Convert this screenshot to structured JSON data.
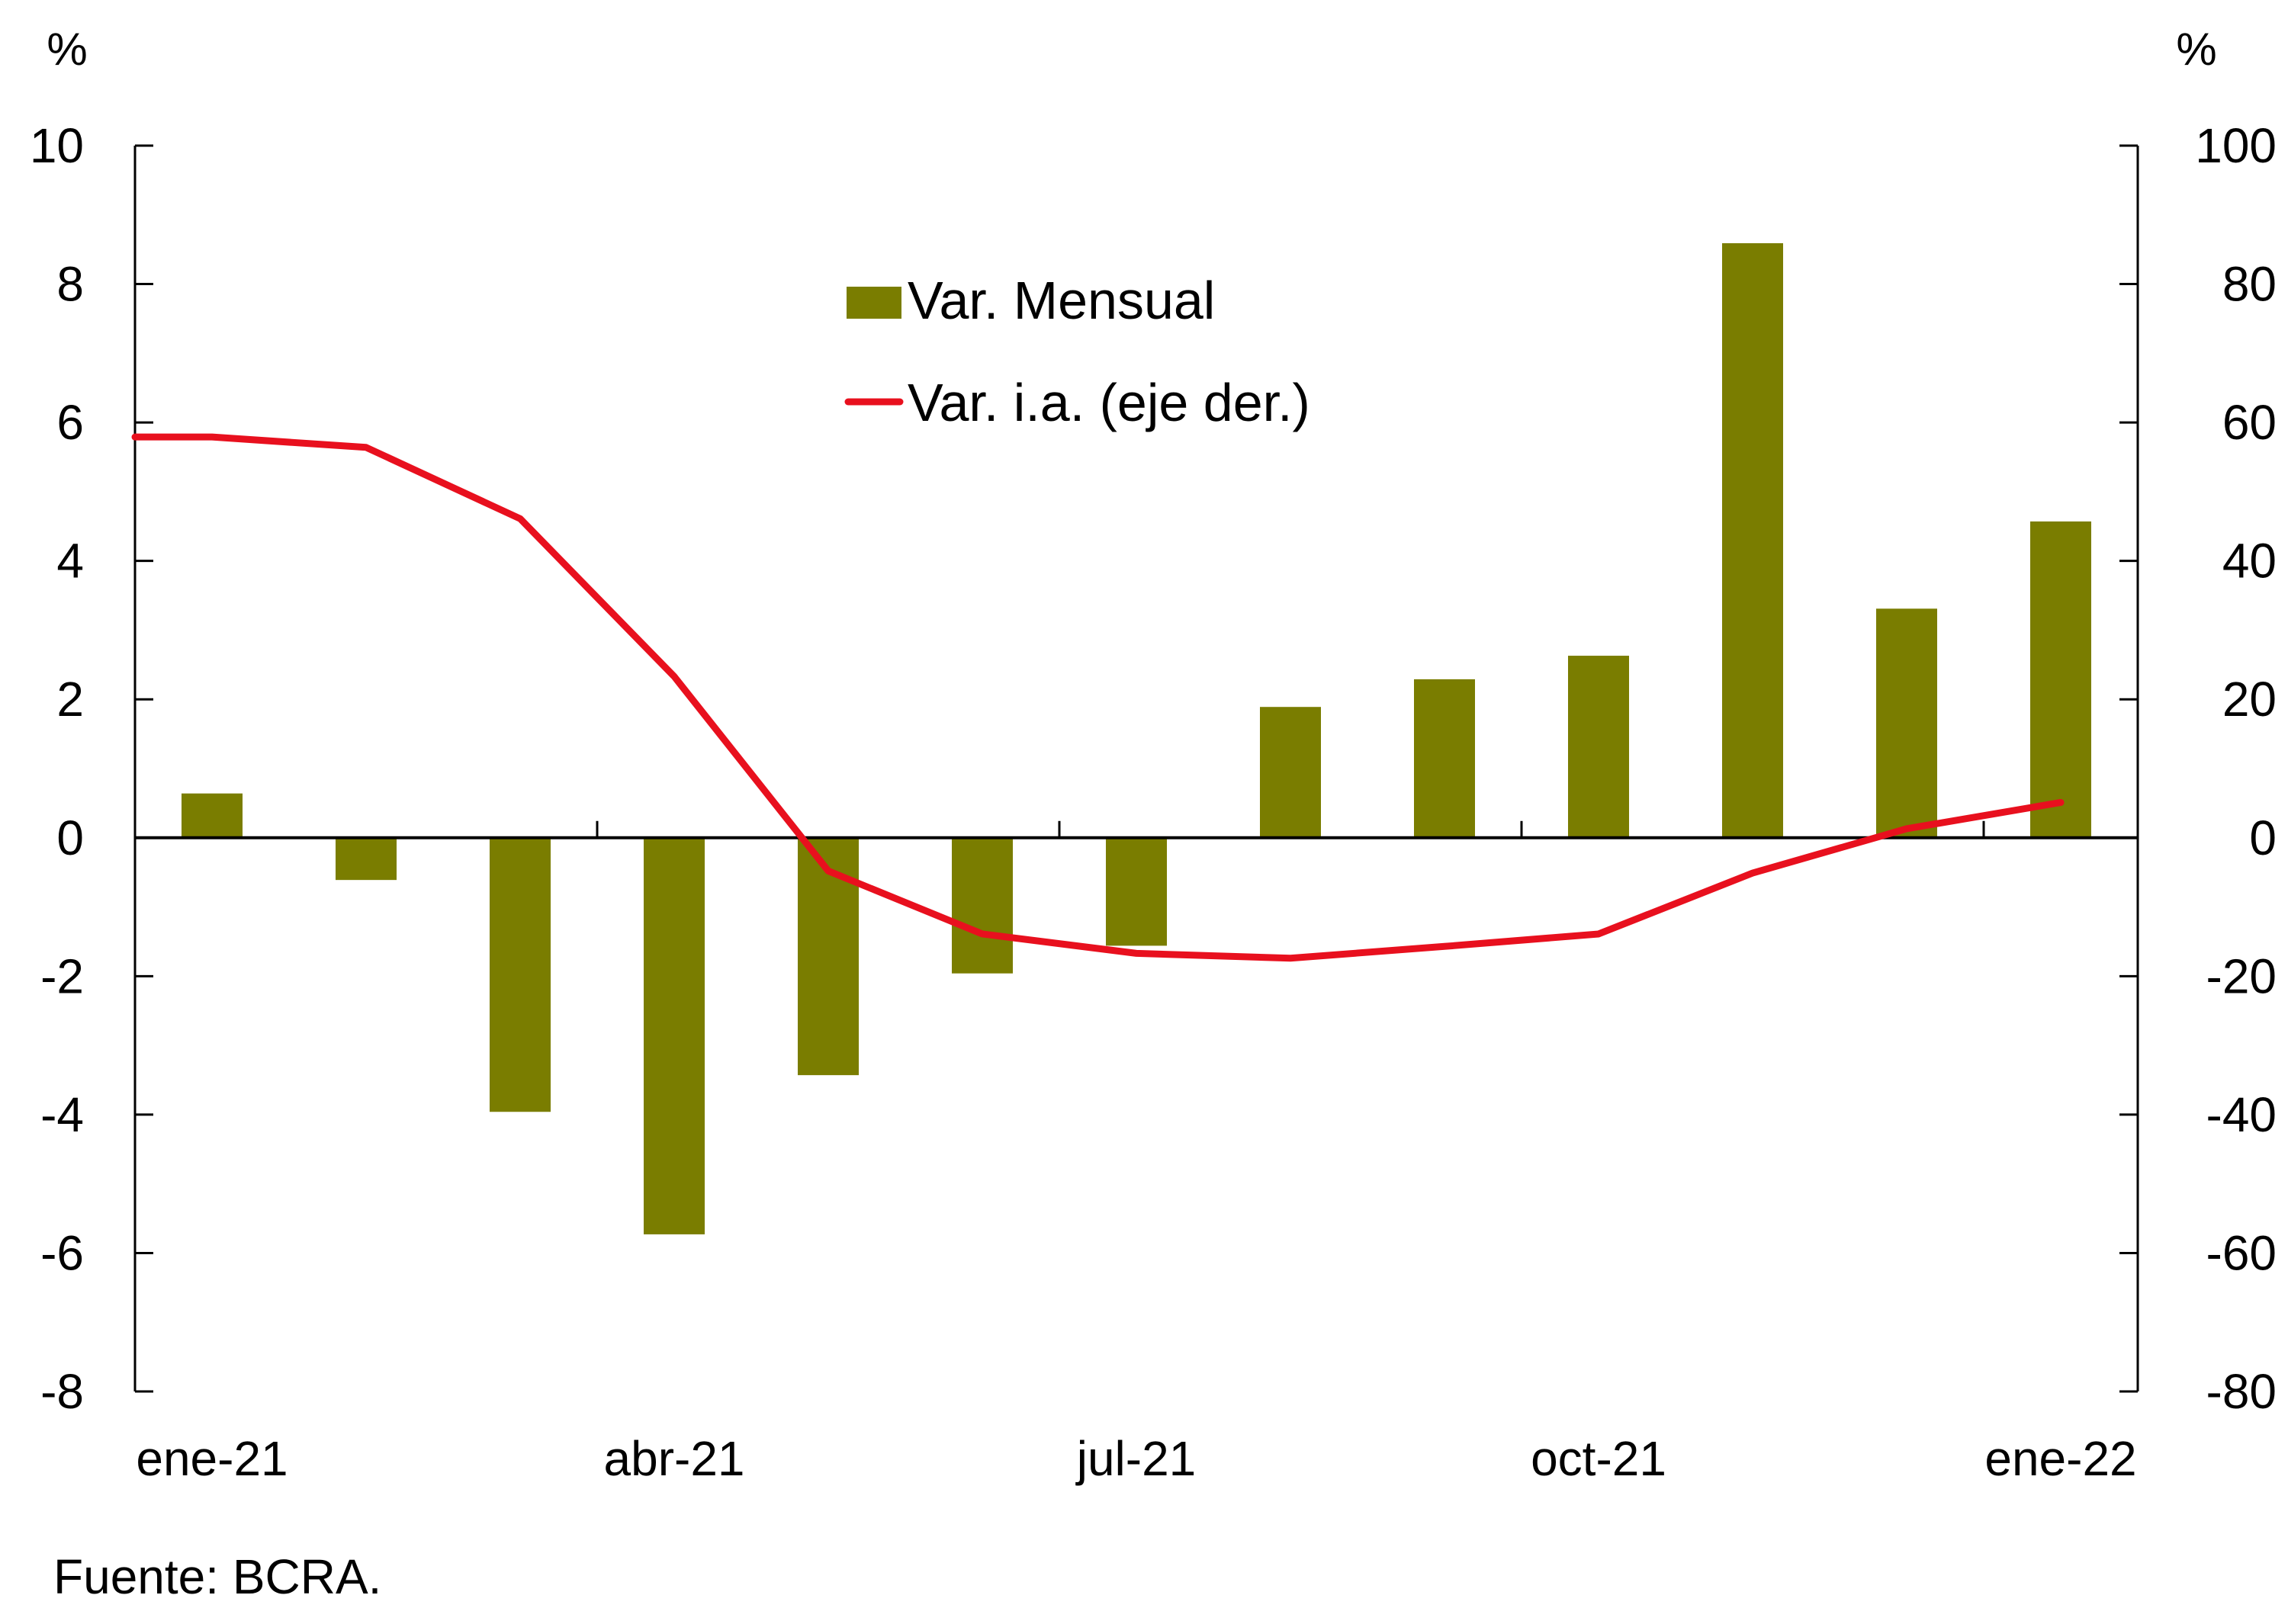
{
  "chart_data": {
    "type": "bar+line",
    "title": "",
    "categories": [
      "ene-21",
      "feb-21",
      "mar-21",
      "abr-21",
      "may-21",
      "jun-21",
      "jul-21",
      "ago-21",
      "sep-21",
      "oct-21",
      "nov-21",
      "dic-21",
      "ene-22"
    ],
    "x_tick_labels": [
      {
        "category": "ene-21",
        "label": "ene-21"
      },
      {
        "category": "abr-21",
        "label": "abr-21"
      },
      {
        "category": "jul-21",
        "label": "jul-21"
      },
      {
        "category": "oct-21",
        "label": "oct-21"
      },
      {
        "category": "ene-22",
        "label": "ene-22"
      }
    ],
    "series": [
      {
        "name": "Var. Mensual",
        "type": "bar",
        "axis": "left",
        "color": "#7A7D00",
        "values": [
          0.64,
          -0.61,
          -3.96,
          -5.73,
          -3.43,
          -1.96,
          -1.56,
          1.89,
          2.29,
          2.63,
          8.59,
          3.31,
          4.57
        ]
      },
      {
        "name": "Var. i.a. (eje der.)",
        "type": "line",
        "axis": "right",
        "color": "#E8101E",
        "values": [
          57.9,
          56.4,
          46.1,
          23.3,
          -4.8,
          -13.9,
          -16.7,
          -17.4,
          -15.7,
          -13.9,
          -5.1,
          1.3,
          5.1
        ]
      }
    ],
    "y_left": {
      "label": "%",
      "ylim": [
        -8,
        10
      ],
      "ticks": [
        10,
        8,
        6,
        4,
        2,
        0,
        -2,
        -4,
        -6,
        -8
      ]
    },
    "y_right": {
      "label": "%",
      "ylim": [
        -80,
        100
      ],
      "ticks": [
        100,
        80,
        60,
        40,
        20,
        0,
        -20,
        -40,
        -60,
        -80
      ]
    },
    "xlabel": "",
    "grid": false,
    "legend": {
      "placement": "top-center",
      "entries": [
        {
          "label": "Var. Mensual",
          "marker": "square",
          "color": "#7A7D00"
        },
        {
          "label": "Var. i.a. (eje der.)",
          "marker": "line",
          "color": "#E8101E"
        }
      ]
    },
    "source": "Fuente: BCRA."
  }
}
